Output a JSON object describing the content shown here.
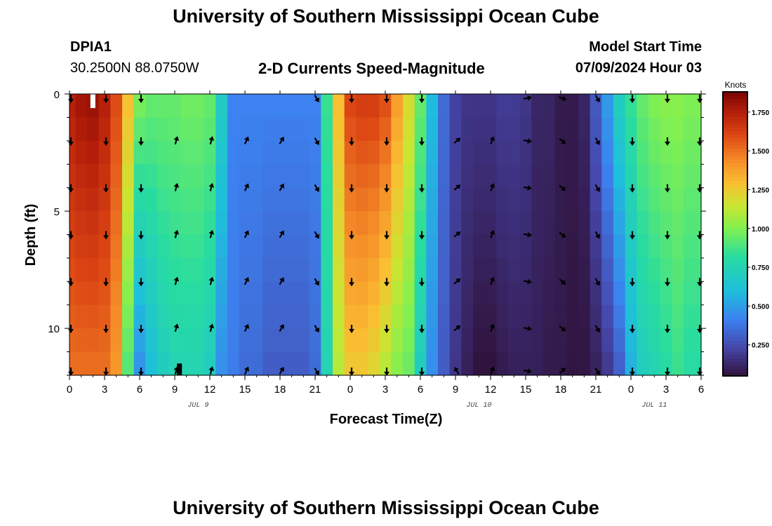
{
  "header": {
    "title": "University of Southern Mississippi Ocean Cube",
    "station_id": "DPIA1",
    "station_coords": "30.2500N  88.0750W",
    "subtitle": "2-D Currents Speed-Magnitude",
    "model_start_label": "Model Start Time",
    "model_start_value": "07/09/2024 Hour 03"
  },
  "footer": {
    "title": "University of Southern Mississippi Ocean Cube"
  },
  "chart_data": {
    "type": "heatmap",
    "title": "2-D Currents Speed-Magnitude",
    "xlabel": "Forecast Time(Z)",
    "ylabel": "Depth (ft)",
    "x_tick_labels": [
      "0",
      "3",
      "6",
      "9",
      "12",
      "15",
      "18",
      "21",
      "0",
      "3",
      "6",
      "9",
      "12",
      "15",
      "18",
      "21",
      "0",
      "3",
      "6"
    ],
    "x_range_hours": [
      0,
      54
    ],
    "date_labels": [
      {
        "label": "JUL 9",
        "hour": 11
      },
      {
        "label": "JUL 10",
        "hour": 35
      },
      {
        "label": "JUL 11",
        "hour": 50
      }
    ],
    "y_ticks": [
      0,
      5,
      10
    ],
    "y_range_ft": [
      0,
      12
    ],
    "colorbar": {
      "label": "Knots",
      "range": [
        0.05,
        1.88
      ],
      "ticks": [
        "1.750",
        "1.500",
        "1.250",
        "1.000",
        "0.750",
        "0.500",
        "0.250"
      ],
      "tick_values": [
        1.75,
        1.5,
        1.25,
        1.0,
        0.75,
        0.5,
        0.25
      ]
    },
    "time_profile_hours": [
      0,
      1,
      2,
      3,
      4,
      5,
      6,
      7,
      8,
      9,
      10,
      11,
      12,
      13,
      14,
      15,
      16,
      17,
      18,
      19,
      20,
      21,
      22,
      23,
      24,
      25,
      26,
      27,
      28,
      29,
      30,
      31,
      32,
      33,
      34,
      35,
      36,
      37,
      38,
      39,
      40,
      41,
      42,
      43,
      44,
      45,
      46,
      47,
      48,
      49,
      50,
      51,
      52,
      53,
      54
    ],
    "speed_surface_knots": [
      1.75,
      1.8,
      1.82,
      1.75,
      1.6,
      1.3,
      1.0,
      0.95,
      0.95,
      0.95,
      0.97,
      0.97,
      0.95,
      0.7,
      0.42,
      0.42,
      0.42,
      0.42,
      0.42,
      0.42,
      0.42,
      0.42,
      0.85,
      1.3,
      1.62,
      1.65,
      1.65,
      1.6,
      1.4,
      1.2,
      0.95,
      0.6,
      0.35,
      0.22,
      0.18,
      0.18,
      0.18,
      0.2,
      0.2,
      0.18,
      0.12,
      0.12,
      0.08,
      0.08,
      0.12,
      0.3,
      0.5,
      0.72,
      0.85,
      0.95,
      1.0,
      1.02,
      1.02,
      1.0,
      1.0
    ],
    "speed_bottom_knots": [
      1.5,
      1.5,
      1.5,
      1.5,
      1.4,
      0.9,
      0.45,
      0.6,
      0.7,
      0.75,
      0.75,
      0.75,
      0.7,
      0.45,
      0.4,
      0.35,
      0.35,
      0.3,
      0.3,
      0.3,
      0.3,
      0.35,
      0.75,
      1.1,
      1.25,
      1.25,
      1.2,
      1.1,
      1.0,
      0.95,
      0.7,
      0.45,
      0.3,
      0.18,
      0.1,
      0.05,
      0.05,
      0.08,
      0.1,
      0.1,
      0.1,
      0.08,
      0.08,
      0.06,
      0.06,
      0.1,
      0.18,
      0.3,
      0.55,
      0.7,
      0.75,
      0.8,
      0.85,
      0.8,
      0.8
    ],
    "arrows": {
      "times_hours": [
        0,
        3,
        6,
        9,
        12,
        15,
        18,
        21,
        24,
        27,
        30,
        33,
        36,
        39,
        42,
        45,
        48,
        51,
        54
      ],
      "depths_ft": [
        0,
        2,
        4,
        6,
        8,
        10,
        12
      ],
      "direction_deg": [
        180,
        180,
        180,
        15,
        15,
        25,
        30,
        150,
        180,
        180,
        180,
        50,
        20,
        100,
        130,
        150,
        180,
        180,
        180
      ],
      "surface_direction_deg": [
        180,
        180,
        180,
        null,
        null,
        null,
        null,
        150,
        180,
        180,
        180,
        null,
        null,
        80,
        110,
        150,
        180,
        180,
        180
      ],
      "bottom_direction_deg": [
        null,
        null,
        null,
        15,
        15,
        25,
        30,
        null,
        null,
        null,
        null,
        330,
        null,
        100,
        45,
        null,
        null,
        null,
        null
      ]
    },
    "markers": [
      {
        "hour": 2,
        "depth_from": 0,
        "depth_to": 0.6,
        "color": "#ffffff"
      },
      {
        "hour": 9.4,
        "depth_from": 11.5,
        "depth_to": 12,
        "color": "#000000"
      }
    ]
  }
}
